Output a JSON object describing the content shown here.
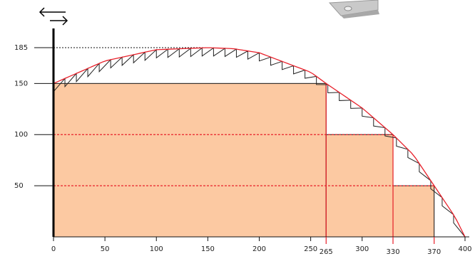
{
  "chart_data": {
    "type": "area",
    "title": "",
    "xlabel": "",
    "ylabel": "",
    "xlim": [
      0,
      400
    ],
    "ylim": [
      0,
      185
    ],
    "x_ticks": [
      0,
      50,
      100,
      150,
      200,
      250,
      300,
      400
    ],
    "x_marked": [
      265,
      330,
      370
    ],
    "y_ticks": [
      185,
      150,
      100,
      50
    ],
    "curve": {
      "x": [
        0,
        50,
        100,
        150,
        175,
        200,
        250,
        265,
        300,
        330,
        350,
        370,
        390,
        400
      ],
      "y": [
        150,
        172,
        183,
        185,
        184,
        180,
        161,
        150,
        126,
        100,
        80,
        50,
        20,
        0
      ]
    },
    "steps": [
      {
        "x_start": 0,
        "x_end": 265,
        "height": 150
      },
      {
        "x_start": 265,
        "x_end": 330,
        "height": 100
      },
      {
        "x_start": 330,
        "x_end": 370,
        "height": 50
      }
    ],
    "colors": {
      "fill": "#fcc9a2",
      "curve": "#e8202a",
      "sawtooth": "#222222",
      "axis": "#000000"
    },
    "icons": {
      "top_left": "double-arrow-icon",
      "top_right": "metal-bracket-icon"
    }
  }
}
